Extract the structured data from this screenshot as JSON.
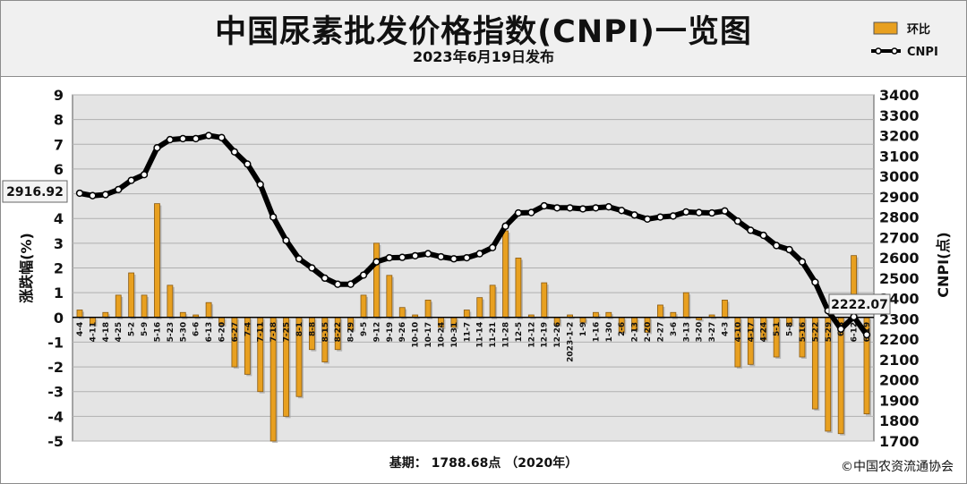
{
  "header": {
    "title": "中国尿素批发价格指数(CNPI)一览图",
    "subtitle": "2023年6月19日发布"
  },
  "legend": {
    "bar_label": "环比",
    "line_label": "CNPI"
  },
  "footer": {
    "base_text": "基期：  1788.68点 （2020年）",
    "copyright": "©中国农资流通协会"
  },
  "colors": {
    "bar_fill": "#e8a020",
    "bar_edge": "#8a5a10",
    "line": "#000000",
    "marker_fill": "#ffffff",
    "grid": "#b0b0b0",
    "plot_bg": "#e4e4e4"
  },
  "chart_data": {
    "type": "bar",
    "title": "中国尿素批发价格指数(CNPI)一览图",
    "subtitle": "2023年6月19日发布",
    "categories": [
      "4-4",
      "4-11",
      "4-18",
      "4-25",
      "5-2",
      "5-9",
      "5-16",
      "5-23",
      "5-30",
      "6-6",
      "6-13",
      "6-20",
      "6-27",
      "7-4",
      "7-11",
      "7-18",
      "7-25",
      "8-1",
      "8-8",
      "8-15",
      "8-22",
      "8-29",
      "9-5",
      "9-12",
      "9-19",
      "9-26",
      "10-10",
      "10-17",
      "10-24",
      "10-31",
      "11-7",
      "11-14",
      "11-21",
      "11-28",
      "12-5",
      "12-12",
      "12-19",
      "12-26",
      "2023-1-2",
      "1-9",
      "1-16",
      "1-30",
      "2-6",
      "2-13",
      "2-20",
      "2-27",
      "3-6",
      "3-13",
      "3-20",
      "3-27",
      "4-3",
      "4-10",
      "4-17",
      "4-24",
      "5-1",
      "5-8",
      "5-16",
      "5-22",
      "5-29",
      "6-5",
      "6-12",
      "6-19"
    ],
    "ylabel": "涨跌幅(%)",
    "y2label": "CNPI(点)",
    "ylim": [
      -5,
      9
    ],
    "y2lim": [
      1700,
      3400
    ],
    "yticks": [
      "9",
      "8",
      "7",
      "6",
      "5",
      "4",
      "3",
      "2",
      "1",
      "0",
      "-1",
      "-2",
      "-3",
      "-4",
      "-5"
    ],
    "y2ticks": [
      "3400",
      "3300",
      "3200",
      "3100",
      "3000",
      "2900",
      "2800",
      "2700",
      "2600",
      "2500",
      "2400",
      "2300",
      "2200",
      "2100",
      "2000",
      "1900",
      "1800",
      "1700"
    ],
    "grid": true,
    "legend_position": "top-right",
    "series": [
      {
        "name": "环比",
        "type": "bar",
        "axis": "left",
        "values": [
          0.3,
          -0.3,
          0.2,
          0.9,
          1.8,
          0.9,
          4.6,
          1.3,
          0.2,
          0.1,
          0.6,
          -0.3,
          -2.0,
          -2.3,
          -3.0,
          -5.0,
          -4.0,
          -3.2,
          -1.3,
          -1.8,
          -1.3,
          -0.5,
          0.9,
          3.0,
          1.7,
          0.4,
          0.1,
          0.7,
          -0.4,
          -0.4,
          0.3,
          0.8,
          1.3,
          3.5,
          2.4,
          0.1,
          1.4,
          -0.3,
          0.1,
          -0.2,
          0.2,
          0.2,
          -0.6,
          -0.5,
          -0.6,
          0.5,
          0.2,
          1.0,
          -0.1,
          0.1,
          0.7,
          -2.0,
          -1.9,
          -0.9,
          -1.6,
          -0.3,
          -1.6,
          -3.7,
          -4.6,
          -4.7,
          2.5,
          -3.9
        ]
      },
      {
        "name": "CNPI",
        "type": "line",
        "axis": "right",
        "values": [
          2916.92,
          2905,
          2910,
          2935,
          2980,
          3008,
          3140,
          3180,
          3185,
          3185,
          3200,
          3190,
          3120,
          3060,
          2960,
          2800,
          2685,
          2595,
          2550,
          2500,
          2470,
          2470,
          2515,
          2580,
          2600,
          2602,
          2610,
          2620,
          2605,
          2595,
          2600,
          2620,
          2650,
          2755,
          2820,
          2822,
          2855,
          2845,
          2845,
          2840,
          2845,
          2850,
          2832,
          2810,
          2790,
          2800,
          2805,
          2825,
          2822,
          2820,
          2830,
          2780,
          2735,
          2710,
          2660,
          2640,
          2580,
          2480,
          2340,
          2250,
          2310,
          2222.07
        ]
      }
    ],
    "annotations": [
      {
        "text": "2916.92"
      },
      {
        "text": "2222.07"
      }
    ]
  }
}
